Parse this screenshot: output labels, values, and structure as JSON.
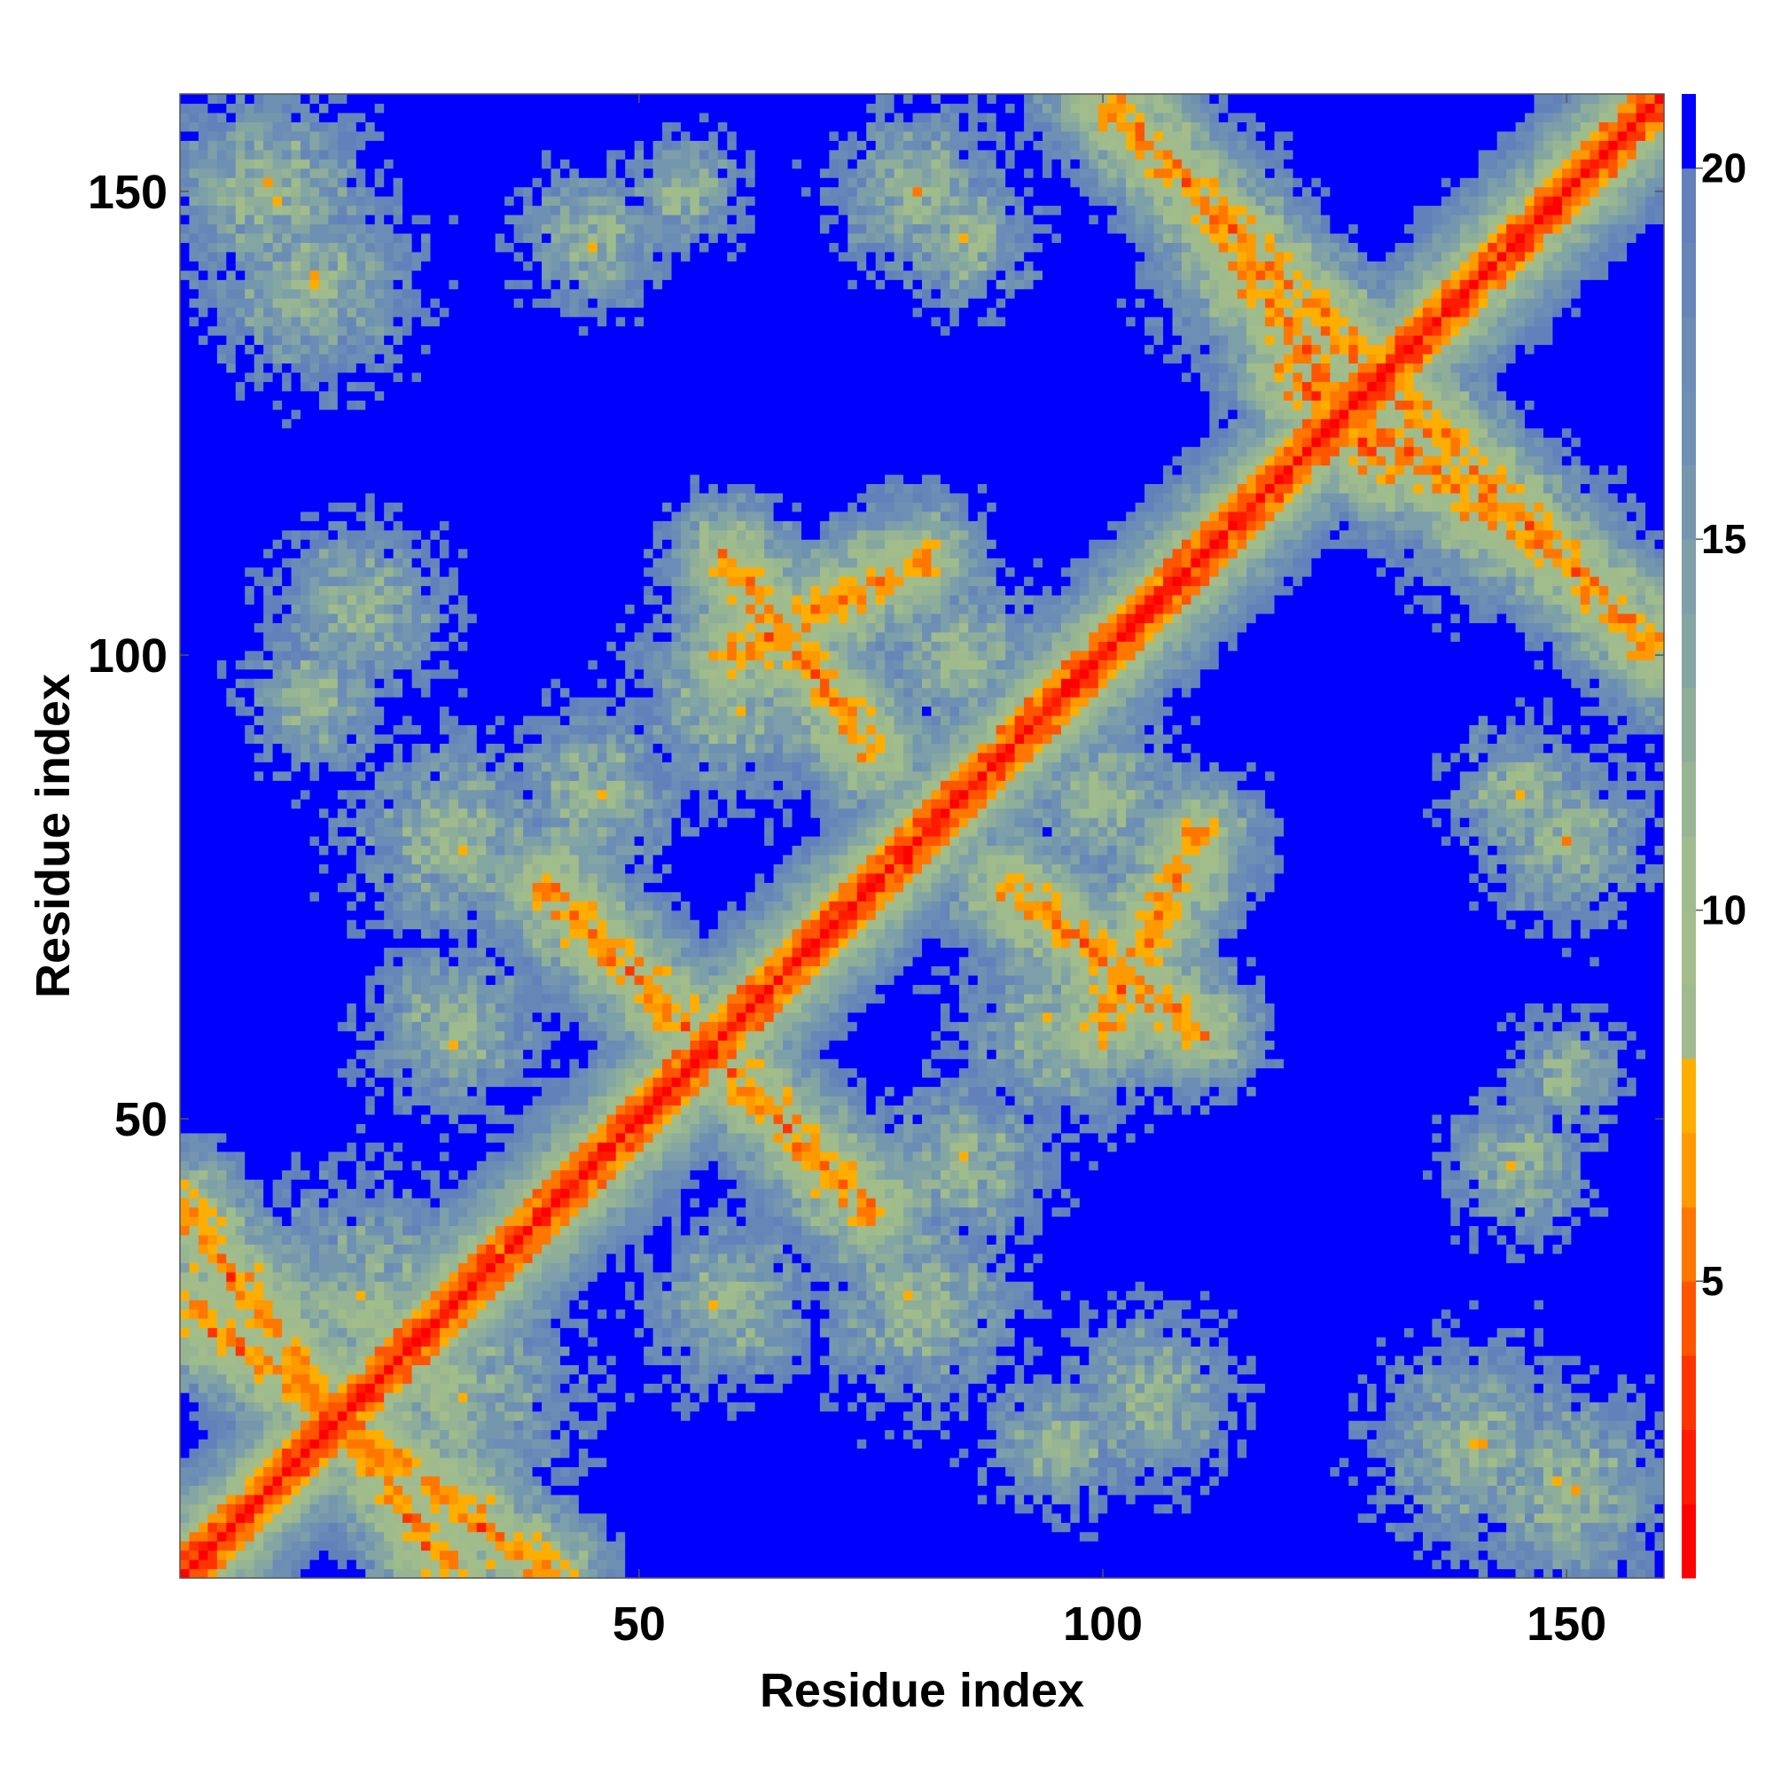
{
  "chart_data": {
    "type": "heatmap",
    "title": "",
    "xlabel": "Residue index",
    "ylabel": "Residue index",
    "n_residues": 160,
    "xlim": [
      1,
      160
    ],
    "ylim": [
      1,
      160
    ],
    "x_ticks": [
      50,
      100,
      150
    ],
    "y_ticks": [
      50,
      100,
      150
    ],
    "colorbar": {
      "range": [
        1,
        21
      ],
      "ticks": [
        5,
        10,
        15,
        20
      ],
      "levels": [
        {
          "max": 2,
          "color": "#ff0000"
        },
        {
          "max": 3,
          "color": "#ff1a00"
        },
        {
          "max": 4,
          "color": "#ff3300"
        },
        {
          "max": 5,
          "color": "#ff5500"
        },
        {
          "max": 6,
          "color": "#ff7700"
        },
        {
          "max": 7,
          "color": "#ff9900"
        },
        {
          "max": 8,
          "color": "#ffae00"
        },
        {
          "max": 9,
          "color": "#9fbb8d"
        },
        {
          "max": 10,
          "color": "#a2bd8a"
        },
        {
          "max": 11,
          "color": "#9fbc8c"
        },
        {
          "max": 12,
          "color": "#97b593"
        },
        {
          "max": 13,
          "color": "#8eae9a"
        },
        {
          "max": 14,
          "color": "#84a6a3"
        },
        {
          "max": 15,
          "color": "#7c9fa9"
        },
        {
          "max": 16,
          "color": "#7597ae"
        },
        {
          "max": 17,
          "color": "#6d90b3"
        },
        {
          "max": 18,
          "color": "#6a8cb6"
        },
        {
          "max": 19,
          "color": "#6686b8"
        },
        {
          "max": 20,
          "color": "#6281bb"
        },
        {
          "max": 21,
          "color": "#0000ff"
        }
      ]
    },
    "distance_model": {
      "description": "Symmetric residue-residue distance map; diagonal near 0-4, blue = beyond cutoff (>20)",
      "diagonal_width": 3,
      "contact_bands": [
        {
          "from": [
            1,
            40
          ],
          "to": [
            30,
            1
          ]
        },
        {
          "from": [
            45,
            70
          ],
          "to": [
            75,
            40
          ]
        },
        {
          "from": [
            60,
            100
          ],
          "to": [
            80,
            110
          ]
        },
        {
          "from": [
            90,
            75
          ],
          "to": [
            110,
            60
          ]
        },
        {
          "from": [
            110,
            150
          ],
          "to": [
            130,
            120
          ]
        },
        {
          "from": [
            130,
            130
          ],
          "to": [
            160,
            100
          ]
        }
      ],
      "clusters": [
        {
          "x": 10,
          "y": 150,
          "r": 14
        },
        {
          "x": 45,
          "y": 145,
          "r": 10
        },
        {
          "x": 80,
          "y": 150,
          "r": 12
        },
        {
          "x": 110,
          "y": 150,
          "r": 10
        },
        {
          "x": 20,
          "y": 105,
          "r": 12
        },
        {
          "x": 60,
          "y": 95,
          "r": 14
        },
        {
          "x": 30,
          "y": 80,
          "r": 14
        },
        {
          "x": 100,
          "y": 85,
          "r": 12
        },
        {
          "x": 145,
          "y": 85,
          "r": 10
        },
        {
          "x": 150,
          "y": 55,
          "r": 8
        },
        {
          "x": 140,
          "y": 15,
          "r": 14
        },
        {
          "x": 20,
          "y": 30,
          "r": 18
        },
        {
          "x": 60,
          "y": 30,
          "r": 12
        },
        {
          "x": 85,
          "y": 45,
          "r": 12
        },
        {
          "x": 95,
          "y": 15,
          "r": 10
        },
        {
          "x": 140,
          "y": 115,
          "r": 12
        }
      ]
    }
  }
}
